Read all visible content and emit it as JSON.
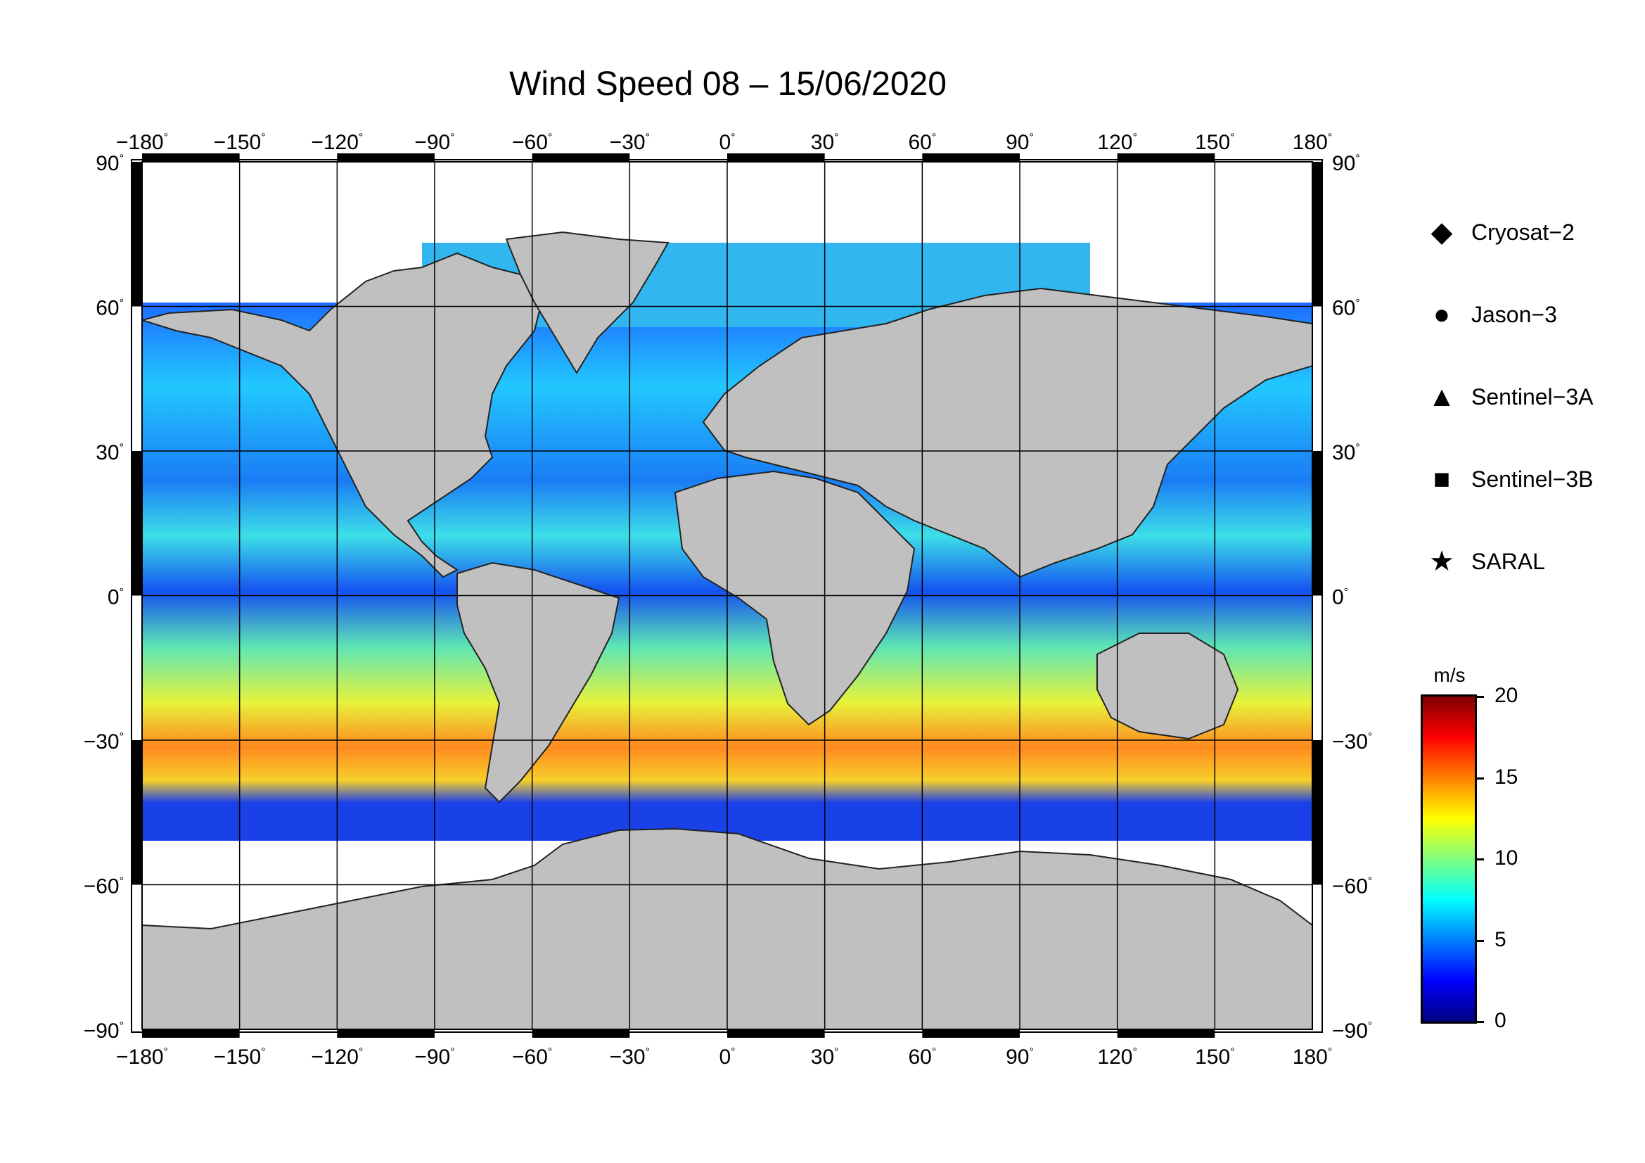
{
  "title": "Wind Speed 08 – 15/06/2020",
  "map": {
    "lon_ticks": [
      "−180",
      "−150",
      "−120",
      "−90",
      "−60",
      "−30",
      "0",
      "30",
      "60",
      "90",
      "120",
      "150",
      "180"
    ],
    "lat_ticks": [
      "90",
      "60",
      "30",
      "0",
      "−30",
      "−60",
      "−90"
    ],
    "lon_range": [
      -180,
      180
    ],
    "lat_range": [
      -90,
      90
    ],
    "grid": true,
    "land_color": "#c0c0c0",
    "ice_color": "#ffffff"
  },
  "legend": [
    {
      "label": "Cryosat−2",
      "icon": "diamond-icon",
      "glyph": "◆"
    },
    {
      "label": "Jason−3",
      "icon": "circle-icon",
      "glyph": "●"
    },
    {
      "label": "Sentinel−3A",
      "icon": "triangle-icon",
      "glyph": "▲"
    },
    {
      "label": "Sentinel−3B",
      "icon": "square-icon",
      "glyph": "■"
    },
    {
      "label": "SARAL",
      "icon": "star-icon",
      "glyph": "★"
    }
  ],
  "colorbar": {
    "unit": "m/s",
    "ticks": [
      "20",
      "15",
      "10",
      "5",
      "0"
    ],
    "range": [
      0,
      20
    ],
    "colors": [
      "#00007f",
      "#0000ff",
      "#007fff",
      "#00ffff",
      "#7fff7f",
      "#ffff00",
      "#ff7f00",
      "#ff0000",
      "#7f0000"
    ]
  }
}
